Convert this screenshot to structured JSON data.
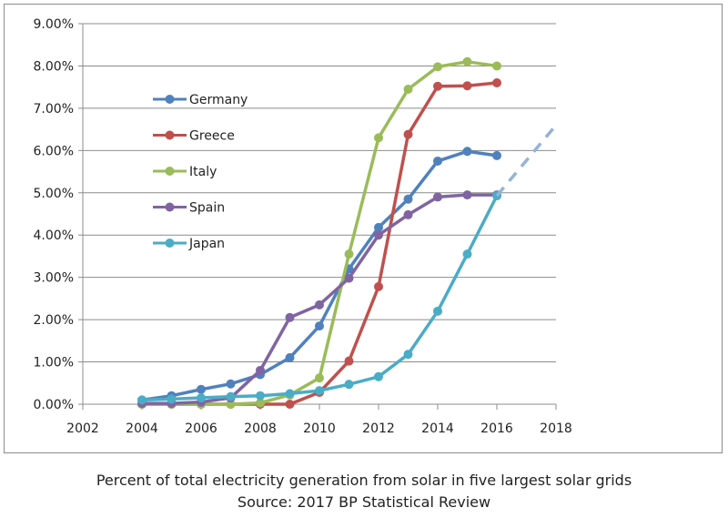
{
  "chart_data": {
    "type": "line",
    "title": "",
    "xlabel": "",
    "ylabel": "",
    "xlim": [
      2002,
      2018
    ],
    "ylim": [
      0,
      9
    ],
    "x_ticks": [
      "2002",
      "2004",
      "2006",
      "2008",
      "2010",
      "2012",
      "2014",
      "2016",
      "2018"
    ],
    "y_ticks": [
      "0.00%",
      "1.00%",
      "2.00%",
      "3.00%",
      "4.00%",
      "5.00%",
      "6.00%",
      "7.00%",
      "8.00%",
      "9.00%"
    ],
    "grid": "horizontal",
    "legend_position": "upper-left-inside",
    "series": [
      {
        "name": "Germany",
        "color": "#4f81bd",
        "x": [
          2004,
          2005,
          2006,
          2007,
          2008,
          2009,
          2010,
          2011,
          2012,
          2013,
          2014,
          2015,
          2016
        ],
        "values": [
          0.1,
          0.2,
          0.35,
          0.48,
          0.7,
          1.1,
          1.85,
          3.2,
          4.18,
          4.85,
          5.75,
          5.98,
          5.88
        ]
      },
      {
        "name": "Greece",
        "color": "#c0504d",
        "x": [
          2004,
          2005,
          2006,
          2007,
          2008,
          2009,
          2010,
          2011,
          2012,
          2013,
          2014,
          2015,
          2016
        ],
        "values": [
          0.0,
          0.0,
          0.0,
          0.0,
          0.0,
          0.0,
          0.28,
          1.02,
          2.78,
          6.38,
          7.52,
          7.53,
          7.6
        ]
      },
      {
        "name": "Italy",
        "color": "#9bbb59",
        "x": [
          2004,
          2005,
          2006,
          2007,
          2008,
          2009,
          2010,
          2011,
          2012,
          2013,
          2014,
          2015,
          2016
        ],
        "values": [
          0.0,
          0.0,
          0.0,
          0.0,
          0.03,
          0.22,
          0.62,
          3.55,
          6.3,
          7.45,
          7.98,
          8.1,
          8.0
        ]
      },
      {
        "name": "Spain",
        "color": "#8064a2",
        "x": [
          2004,
          2005,
          2006,
          2007,
          2008,
          2009,
          2010,
          2011,
          2012,
          2013,
          2014,
          2015,
          2016
        ],
        "values": [
          0.02,
          0.02,
          0.05,
          0.15,
          0.8,
          2.05,
          2.35,
          2.98,
          4.0,
          4.48,
          4.9,
          4.95,
          4.95
        ]
      },
      {
        "name": "Japan",
        "color": "#4bacc6",
        "x": [
          2004,
          2005,
          2006,
          2007,
          2008,
          2009,
          2010,
          2011,
          2012,
          2013,
          2014,
          2015,
          2016
        ],
        "values": [
          0.1,
          0.12,
          0.15,
          0.18,
          0.2,
          0.25,
          0.32,
          0.47,
          0.65,
          1.18,
          2.2,
          3.55,
          4.93
        ]
      },
      {
        "name": "Japan projection",
        "color": "#95b3d7",
        "dashed": true,
        "x": [
          2016,
          2018
        ],
        "values": [
          4.93,
          6.6
        ],
        "in_legend": false
      }
    ]
  },
  "captions": {
    "line1": "Percent of total electricity generation from solar in five largest solar grids",
    "line2": "Source: 2017 BP Statistical Review"
  }
}
